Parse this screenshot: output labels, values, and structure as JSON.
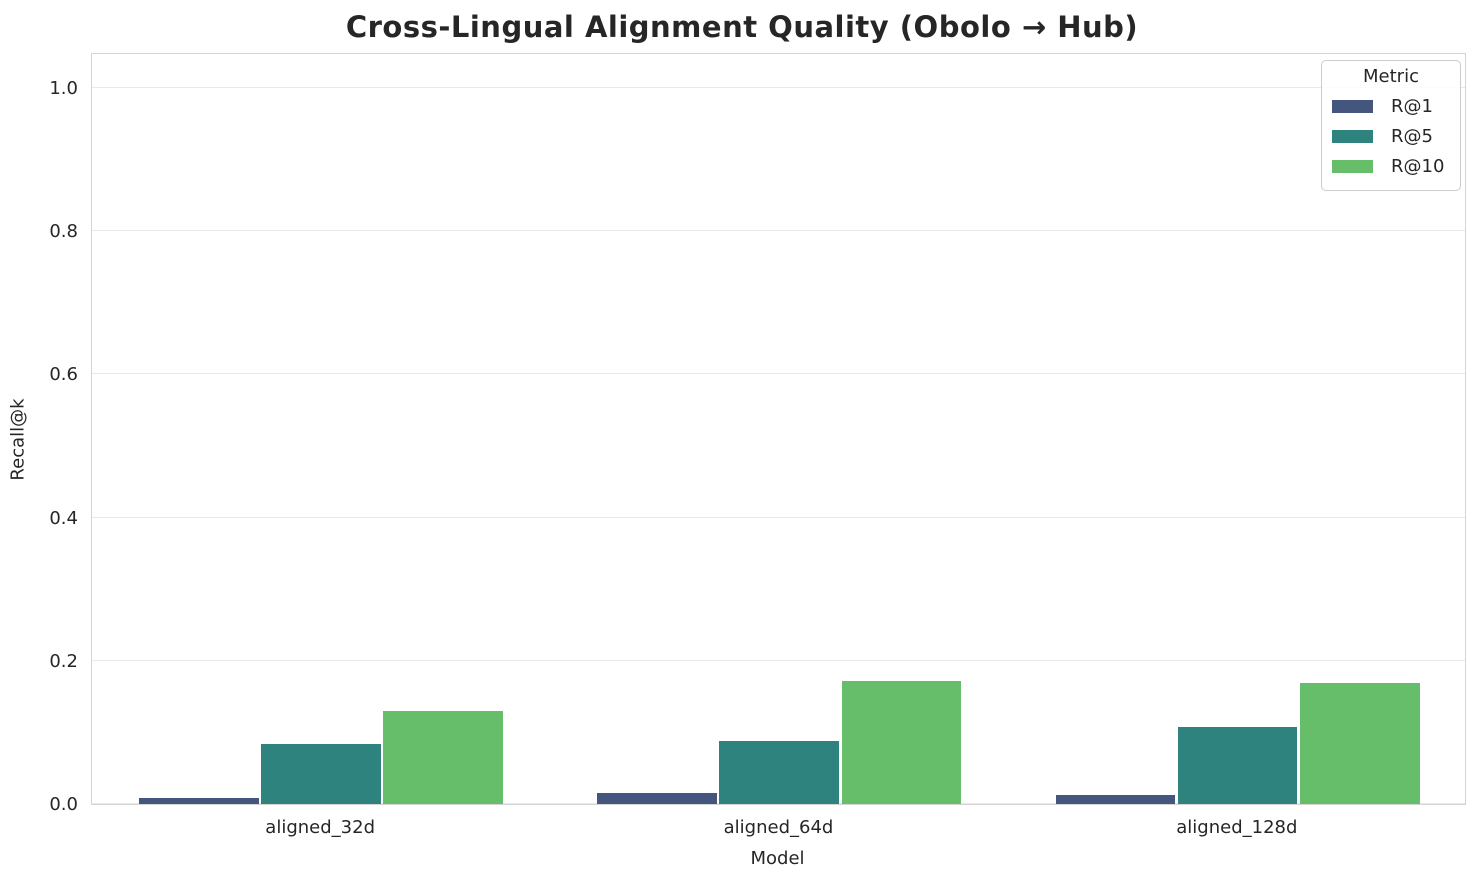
{
  "chart_data": {
    "type": "bar",
    "title": "Cross-Lingual Alignment Quality (Obolo → Hub)",
    "xlabel": "Model",
    "ylabel": "Recall@k",
    "categories": [
      "aligned_32d",
      "aligned_64d",
      "aligned_128d"
    ],
    "series": [
      {
        "name": "R@1",
        "color": "#44567e",
        "values": [
          0.008,
          0.015,
          0.013
        ]
      },
      {
        "name": "R@5",
        "color": "#2e837e",
        "values": [
          0.084,
          0.088,
          0.107
        ]
      },
      {
        "name": "R@10",
        "color": "#66be6a",
        "values": [
          0.13,
          0.172,
          0.169
        ]
      }
    ],
    "ylim": [
      0,
      1.05
    ],
    "yticks": [
      0.0,
      0.2,
      0.4,
      0.6,
      0.8,
      1.0
    ],
    "grid": "horizontal",
    "legend": {
      "title": "Metric",
      "position": "upper right"
    }
  }
}
